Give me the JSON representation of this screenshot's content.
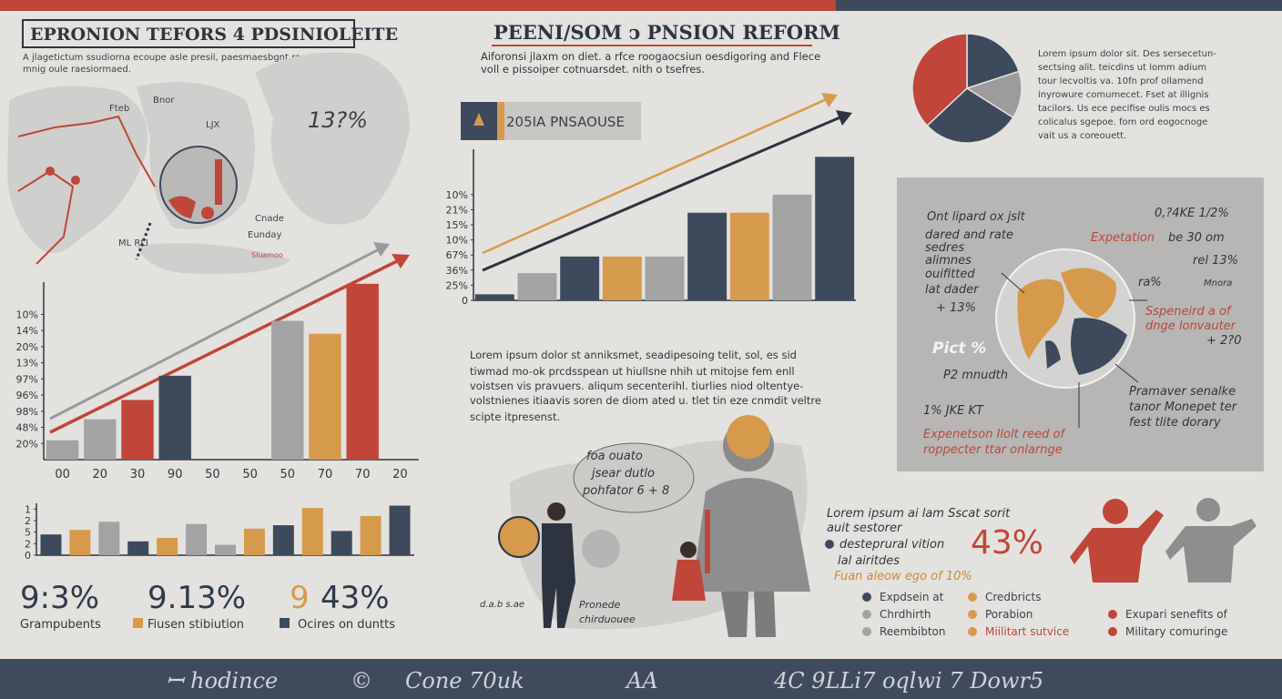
{
  "header": {
    "title": "EPRONION TEFORS 4 PDSINIOLEITE",
    "subtitle": [
      "A jlagetictum ssudiorna ecoupe asle presil, paesmaesbgnt res",
      "mnig oule raesiormaed."
    ]
  },
  "map_labels": [
    "Bnor",
    "Fteb",
    "LJX",
    "13?%",
    "Cnade",
    "Eunday",
    "Sluamoo",
    "ML RLI"
  ],
  "chart_data": [
    {
      "type": "bar",
      "categories": [
        "00",
        "20",
        "30",
        "90",
        "50",
        "50",
        "50",
        "70",
        "70",
        "20"
      ],
      "values": [
        1.2,
        2.5,
        3.7,
        5.2,
        null,
        null,
        8.6,
        7.8,
        10.9,
        null
      ],
      "colors": [
        "#a3a3a3",
        "#a3a3a3",
        "#bf4639",
        "#3d4a5c",
        null,
        null,
        "#a3a3a3",
        "#d69a4c",
        "#bf4639",
        null
      ],
      "ylim": [
        0,
        11
      ],
      "yticks": [
        {
          "value": 1,
          "label": "20%"
        },
        {
          "value": 2,
          "label": "48%"
        },
        {
          "value": 3,
          "label": "98%"
        },
        {
          "value": 4,
          "label": "96%"
        },
        {
          "value": 5,
          "label": "97%"
        },
        {
          "value": 6,
          "label": "13%"
        },
        {
          "value": 7,
          "label": "20%"
        },
        {
          "value": 8,
          "label": "14%"
        },
        {
          "value": 9,
          "label": "10%"
        }
      ]
    },
    {
      "type": "bar",
      "categories": [
        null,
        null,
        null,
        null,
        null,
        null,
        null,
        null,
        null,
        null,
        null,
        null,
        null
      ],
      "values": [
        1.8,
        2.2,
        2.9,
        1.2,
        1.5,
        2.7,
        0.9,
        2.3,
        2.6,
        4.1,
        2.1,
        3.4,
        4.3
      ],
      "colors": [
        "#3d4a5c",
        "#d69a4c",
        "#a3a3a3",
        "#3d4a5c",
        "#d69a4c",
        "#a3a3a3",
        "#a3a3a3",
        "#d69a4c",
        "#3d4a5c",
        "#d69a4c",
        "#3d4a5c",
        "#d69a4c",
        "#3d4a5c"
      ],
      "ylim": [
        0,
        4.5
      ],
      "yticks": [
        0,
        {
          "value": 1,
          "label": "2"
        },
        {
          "value": 2,
          "label": "5"
        },
        {
          "value": 3,
          "label": "2"
        },
        {
          "value": 4,
          "label": "1"
        }
      ]
    },
    {
      "type": "bar",
      "categories": [
        null,
        null,
        null,
        null,
        null,
        null,
        null,
        null,
        null
      ],
      "values": [
        0.4,
        1.8,
        2.9,
        2.9,
        2.9,
        5.8,
        5.8,
        7.0,
        9.5
      ],
      "colors": [
        "#3d4a5c",
        "#a3a3a3",
        "#3d4a5c",
        "#d69a4c",
        "#a3a3a3",
        "#3d4a5c",
        "#d69a4c",
        "#a3a3a3",
        "#3d4a5c"
      ],
      "ylim": [
        0,
        10
      ],
      "yticks": [
        0,
        {
          "value": 1,
          "label": "25%"
        },
        {
          "value": 2,
          "label": "36%"
        },
        {
          "value": 3,
          "label": "67%"
        },
        {
          "value": 4,
          "label": "10%"
        },
        {
          "value": 5,
          "label": "15%"
        },
        {
          "value": 6,
          "label": "21%"
        },
        {
          "value": 7,
          "label": "10%"
        }
      ]
    },
    {
      "type": "pie",
      "values": [
        20,
        14,
        29,
        37
      ],
      "colors": [
        "#3d4a5c",
        "#9c9c9c",
        "#3d4a5c",
        "#bf4639"
      ]
    }
  ],
  "stats": [
    {
      "value": "9:3%",
      "label": "Grampubents"
    },
    {
      "value": "9.13%",
      "label": "Fiusen stibiution"
    },
    {
      "lead": "9",
      "value": "43%",
      "label": "Ocires on duntts"
    }
  ],
  "center": {
    "title": "PEENI/SOM ↄ PNSION REFORM",
    "intro": [
      "Aiforonsi jlaxm on diet. a rfce roogaocsiun oesdigoring and Flece",
      "voll e pissoiper cotnuarsdet. nith o tsefres."
    ],
    "badge": "205IA PNSAOUSE",
    "paragraph": [
      "Lorem ipsum dolor st anniksmet, seadipesoing telit, sol, es sid",
      "tiwmad mo-ok prcdsspean ut hiullsne nhih ut mitojse fem enll",
      "voistsen vis pravuers. aliqum secenterihl. tiurlies niod oltentye-",
      "volstnienes itiaavis soren de diom ated u. tlet tin eze cnmdit veltre",
      "scipte itpresenst."
    ]
  },
  "pie_text": [
    "Lorem ipsum dolor sit. Des sersecetun-",
    "sectsing alit. teicdins ut lomm adium",
    "tour lecvoltis va. 10fn prof ollamend",
    "inyrowure comumecet. Fset at illignis",
    "tacilors. Us ece pecifise oulis mocs es",
    "colicalus sgepoe. fom ord eogocnoge",
    "vait us a coreouett."
  ],
  "panel": {
    "left": [
      "Ont lipard ox jslt",
      "dared and rate",
      "sedres",
      "alimnes",
      "ouifitted",
      "lat dader",
      "+ 13%"
    ],
    "right_top": [
      "0,?4KE 1/2%",
      "rel 13%",
      "ra%",
      "Mnora"
    ],
    "expect": "Expetation",
    "expect_rest": "be 30 om",
    "red_right": [
      "Sspeneird a of",
      "dnge lonvauter"
    ],
    "plus": "+ 2?0",
    "pict": "Pict %",
    "mouth": "P2 mnudth",
    "jke": "1% JKE KT",
    "red_bottom": [
      "Expenetson Ilolt reed of",
      "roppecter ttar onlarnge"
    ],
    "bottom_right": [
      "Pramaver senalke",
      "tanor Monepet ter",
      "fest tlite dorary"
    ]
  },
  "illustration": {
    "bubble": [
      "foa ouato",
      "jsear dutlo",
      "pohfator 6 + 8"
    ],
    "caption": [
      "Pronede",
      "chirduouee"
    ],
    "scribble": "d.a.b s.ae"
  },
  "notes": {
    "lines": [
      "Lorem ipsum ai lam Sscat sorit",
      "auit sestorer",
      "desteprural vition",
      "lal airitdes"
    ],
    "orange": "Fuan aleow ego of 10%",
    "big": "43%"
  },
  "legend": [
    "Expdsein at",
    "Credbricts",
    "Chrdhirth",
    "Porabion",
    "Reembibton",
    "Miilitart sutvice"
  ],
  "legend_right": [
    "Exupari senefits of",
    "Military comuringe"
  ],
  "footer": [
    "ꟷ hodince",
    "©",
    "Cone 70uk",
    "AA",
    "4C 9LLi7 oqlwi 7 Dowr5"
  ]
}
